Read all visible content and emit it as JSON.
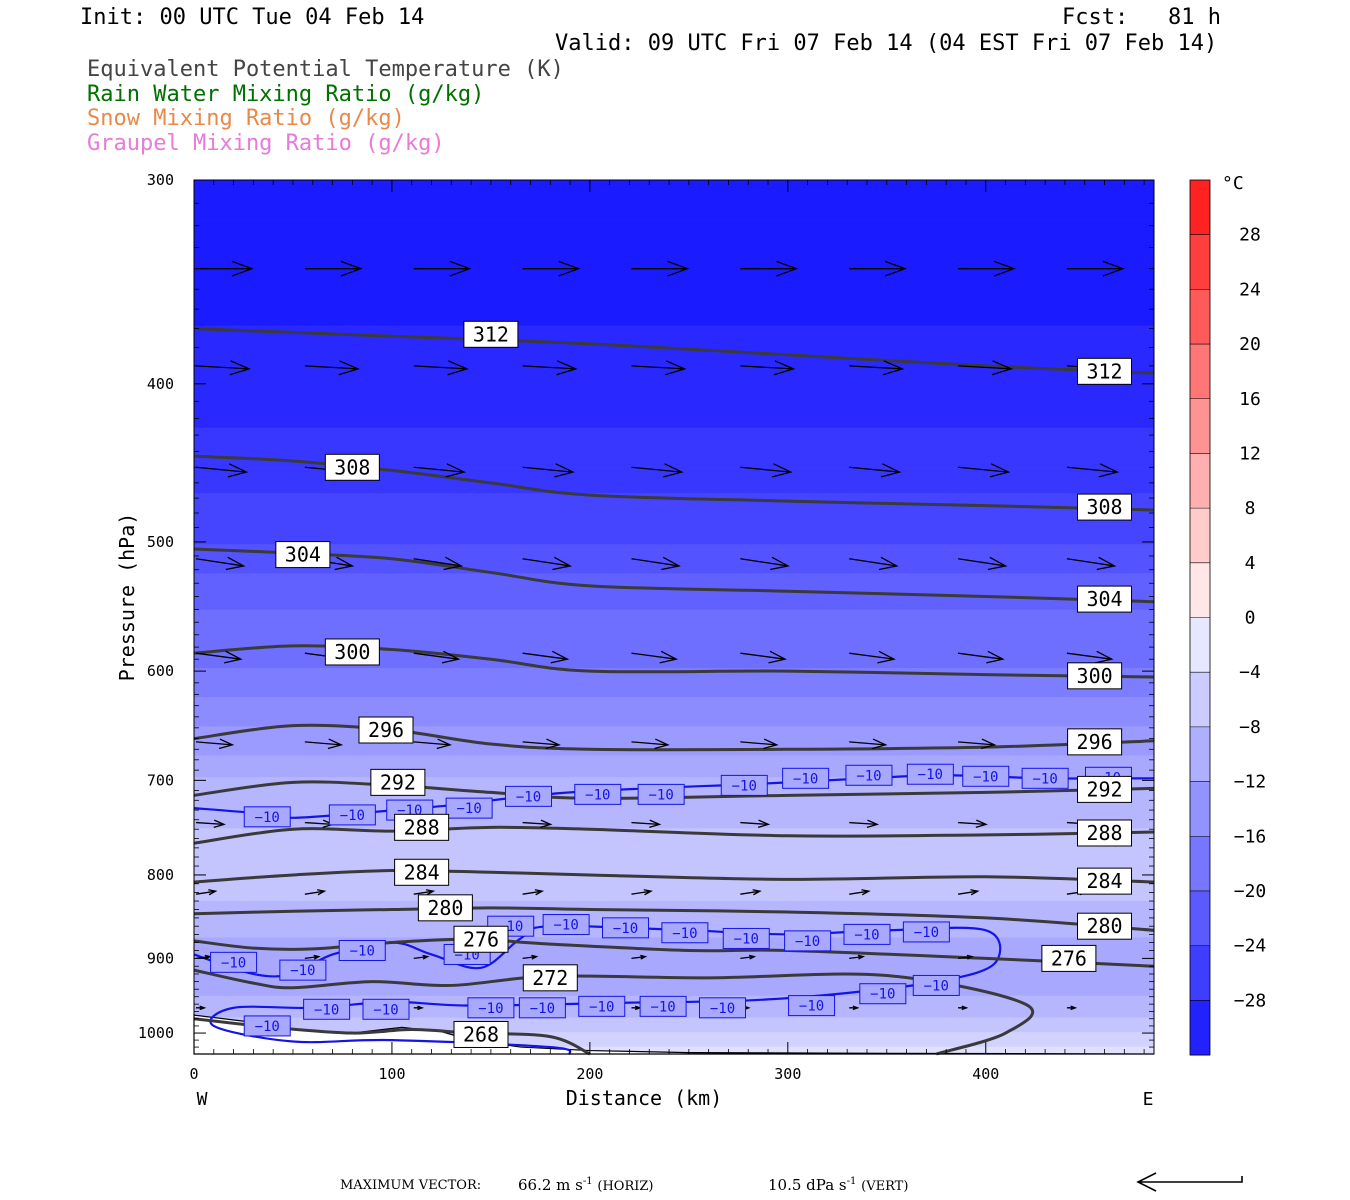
{
  "header": {
    "init": "Init: 00 UTC Tue 04 Feb 14",
    "fcst": "Fcst:   81 h",
    "valid": "Valid: 09 UTC Fri 07 Feb 14 (04 EST Fri 07 Feb 14)"
  },
  "legend": [
    {
      "label": "Equivalent Potential Temperature (K)",
      "color": "#444444"
    },
    {
      "label": "Rain Water Mixing Ratio (g/kg)",
      "color": "#007000"
    },
    {
      "label": "Snow Mixing Ratio (g/kg)",
      "color": "#e8894a"
    },
    {
      "label": "Graupel Mixing Ratio (g/kg)",
      "color": "#e87ad8"
    }
  ],
  "footer": {
    "max_vector_label": "MAXIMUM VECTOR:",
    "horiz_value": "66.2 m s",
    "horiz_exp": "-1",
    "horiz_unit": "(HORIZ)",
    "vert_value": "10.5 dPa s",
    "vert_exp": "-1",
    "vert_unit": "(VERT)"
  },
  "chart_data": {
    "type": "cross-section",
    "xlabel": "Distance (km)",
    "ylabel": "Pressure (hPa)",
    "xlim": [
      0,
      485
    ],
    "ylim": [
      1030,
      300
    ],
    "y_scale": "log",
    "x_ticks": [
      0,
      100,
      200,
      300,
      400
    ],
    "y_ticks": [
      300,
      400,
      500,
      600,
      700,
      800,
      900,
      1000
    ],
    "x_end_labels": {
      "left": "W",
      "right": "E"
    },
    "colorbar": {
      "unit": "°C",
      "tick_labels": [
        28,
        24,
        20,
        16,
        12,
        8,
        4,
        0,
        -4,
        -8,
        -12,
        -16,
        -20,
        -24,
        -28
      ],
      "min": -32,
      "max": 32,
      "step": 4
    },
    "theta_e_contours": [
      {
        "value": 312,
        "points": [
          [
            0,
            370
          ],
          [
            50,
            372
          ],
          [
            100,
            374
          ],
          [
            200,
            378
          ],
          [
            300,
            384
          ],
          [
            400,
            390
          ],
          [
            485,
            394
          ]
        ],
        "labels": [
          [
            150,
            373
          ],
          [
            460,
            393
          ]
        ]
      },
      {
        "value": 308,
        "points": [
          [
            0,
            443
          ],
          [
            50,
            446
          ],
          [
            100,
            452
          ],
          [
            150,
            460
          ],
          [
            200,
            468
          ],
          [
            300,
            472
          ],
          [
            400,
            475
          ],
          [
            485,
            478
          ]
        ],
        "labels": [
          [
            80,
            450
          ],
          [
            460,
            476
          ]
        ]
      },
      {
        "value": 304,
        "points": [
          [
            0,
            505
          ],
          [
            50,
            508
          ],
          [
            100,
            512
          ],
          [
            150,
            522
          ],
          [
            200,
            532
          ],
          [
            300,
            536
          ],
          [
            400,
            540
          ],
          [
            485,
            544
          ]
        ],
        "labels": [
          [
            55,
            509
          ],
          [
            460,
            542
          ]
        ]
      },
      {
        "value": 300,
        "points": [
          [
            0,
            585
          ],
          [
            50,
            579
          ],
          [
            100,
            582
          ],
          [
            150,
            590
          ],
          [
            200,
            600
          ],
          [
            300,
            600
          ],
          [
            400,
            603
          ],
          [
            485,
            605
          ]
        ],
        "labels": [
          [
            80,
            584
          ],
          [
            455,
            604
          ]
        ]
      },
      {
        "value": 296,
        "points": [
          [
            0,
            660
          ],
          [
            50,
            648
          ],
          [
            100,
            652
          ],
          [
            150,
            665
          ],
          [
            200,
            670
          ],
          [
            300,
            670
          ],
          [
            400,
            668
          ],
          [
            485,
            662
          ]
        ],
        "labels": [
          [
            97,
            652
          ],
          [
            455,
            663
          ]
        ]
      },
      {
        "value": 292,
        "points": [
          [
            0,
            715
          ],
          [
            50,
            702
          ],
          [
            100,
            705
          ],
          [
            150,
            712
          ],
          [
            200,
            718
          ],
          [
            300,
            715
          ],
          [
            400,
            712
          ],
          [
            485,
            708
          ]
        ],
        "labels": [
          [
            103,
            702
          ],
          [
            460,
            709
          ]
        ]
      },
      {
        "value": 288,
        "points": [
          [
            0,
            765
          ],
          [
            50,
            750
          ],
          [
            100,
            752
          ],
          [
            150,
            748
          ],
          [
            200,
            750
          ],
          [
            300,
            757
          ],
          [
            400,
            756
          ],
          [
            485,
            753
          ]
        ],
        "labels": [
          [
            115,
            748
          ],
          [
            460,
            754
          ]
        ]
      },
      {
        "value": 284,
        "points": [
          [
            0,
            808
          ],
          [
            50,
            800
          ],
          [
            100,
            795
          ],
          [
            150,
            797
          ],
          [
            200,
            800
          ],
          [
            300,
            805
          ],
          [
            400,
            802
          ],
          [
            485,
            808
          ]
        ],
        "labels": [
          [
            115,
            797
          ],
          [
            460,
            807
          ]
        ]
      },
      {
        "value": 280,
        "points": [
          [
            0,
            845
          ],
          [
            50,
            842
          ],
          [
            100,
            840
          ],
          [
            150,
            838
          ],
          [
            200,
            840
          ],
          [
            300,
            843
          ],
          [
            400,
            850
          ],
          [
            485,
            865
          ]
        ],
        "labels": [
          [
            127,
            838
          ],
          [
            460,
            860
          ]
        ]
      },
      {
        "value": 276,
        "points": [
          [
            0,
            878
          ],
          [
            30,
            887
          ],
          [
            60,
            888
          ],
          [
            100,
            880
          ],
          [
            140,
            876
          ],
          [
            180,
            882
          ],
          [
            250,
            890
          ],
          [
            300,
            890
          ],
          [
            400,
            900
          ],
          [
            485,
            910
          ]
        ],
        "labels": [
          [
            145,
            876
          ],
          [
            442,
            900
          ]
        ]
      },
      {
        "value": 272,
        "points": [
          [
            0,
            915
          ],
          [
            30,
            932
          ],
          [
            50,
            938
          ],
          [
            90,
            930
          ],
          [
            130,
            935
          ],
          [
            180,
            923
          ],
          [
            260,
            925
          ],
          [
            350,
            922
          ],
          [
            420,
            960
          ],
          [
            410,
            1000
          ],
          [
            375,
            1030
          ]
        ],
        "labels": [
          [
            180,
            925
          ]
        ]
      },
      {
        "value": 268,
        "points": [
          [
            0,
            980
          ],
          [
            40,
            992
          ],
          [
            80,
            1000
          ],
          [
            110,
            995
          ],
          [
            140,
            1000
          ],
          [
            180,
            1005
          ],
          [
            200,
            1030
          ]
        ],
        "labels": [
          [
            145,
            1002
          ]
        ]
      }
    ],
    "temperature_contours": [
      {
        "value": -10,
        "color": "#1414e6",
        "points": [
          [
            0,
            728
          ],
          [
            30,
            733
          ],
          [
            50,
            738
          ],
          [
            90,
            732
          ],
          [
            130,
            725
          ],
          [
            190,
            712
          ],
          [
            290,
            703
          ],
          [
            340,
            698
          ],
          [
            380,
            695
          ],
          [
            430,
            698
          ],
          [
            485,
            698
          ]
        ],
        "labels": [
          [
            37,
            737
          ],
          [
            80,
            735
          ],
          [
            109,
            730
          ],
          [
            139,
            728
          ],
          [
            169,
            716
          ],
          [
            204,
            714
          ],
          [
            236,
            714
          ],
          [
            278,
            705
          ],
          [
            309,
            698
          ],
          [
            341,
            695
          ],
          [
            372,
            694
          ],
          [
            400,
            696
          ],
          [
            430,
            698
          ],
          [
            462,
            697
          ]
        ]
      },
      {
        "value": -10,
        "color": "#1414e6",
        "points": [
          [
            0,
            895
          ],
          [
            30,
            920
          ],
          [
            50,
            920
          ],
          [
            70,
            895
          ],
          [
            100,
            880
          ],
          [
            120,
            895
          ],
          [
            145,
            912
          ],
          [
            165,
            875
          ],
          [
            180,
            860
          ],
          [
            250,
            865
          ],
          [
            300,
            870
          ],
          [
            350,
            865
          ],
          [
            400,
            865
          ],
          [
            405,
            905
          ],
          [
            380,
            928
          ],
          [
            330,
            945
          ],
          [
            280,
            955
          ],
          [
            220,
            958
          ],
          [
            140,
            962
          ],
          [
            100,
            957
          ],
          [
            60,
            965
          ],
          [
            20,
            965
          ],
          [
            10,
            990
          ],
          [
            50,
            1012
          ],
          [
            100,
            1010
          ],
          [
            180,
            1020
          ],
          [
            190,
            1030
          ]
        ],
        "labels": [
          [
            20,
            905
          ],
          [
            55,
            915
          ],
          [
            85,
            890
          ],
          [
            138,
            895
          ],
          [
            160,
            860
          ],
          [
            188,
            858
          ],
          [
            218,
            862
          ],
          [
            248,
            868
          ],
          [
            279,
            875
          ],
          [
            310,
            878
          ],
          [
            340,
            870
          ],
          [
            370,
            867
          ],
          [
            150,
            965
          ],
          [
            176,
            965
          ],
          [
            206,
            963
          ],
          [
            237,
            963
          ],
          [
            267,
            965
          ],
          [
            312,
            962
          ],
          [
            348,
            946
          ],
          [
            375,
            935
          ],
          [
            67,
            967
          ],
          [
            97,
            967
          ],
          [
            37,
            990
          ]
        ]
      }
    ],
    "wind_vector_rows": [
      {
        "p": 340,
        "xs": [
          0,
          55,
          110,
          165,
          220,
          275,
          330,
          385,
          440
        ],
        "u": 1.0,
        "w": 0.0
      },
      {
        "p": 390,
        "xs": [
          0,
          55,
          110,
          165,
          220,
          275,
          330,
          385,
          440
        ],
        "u": 0.95,
        "w": -0.05
      },
      {
        "p": 450,
        "xs": [
          0,
          55,
          110,
          165,
          220,
          275,
          330,
          385,
          440
        ],
        "u": 0.9,
        "w": -0.08
      },
      {
        "p": 512,
        "xs": [
          0,
          55,
          110,
          165,
          220,
          275,
          330,
          385,
          440
        ],
        "u": 0.85,
        "w": -0.12
      },
      {
        "p": 585,
        "xs": [
          0,
          55,
          110,
          165,
          220,
          275,
          330,
          385,
          440
        ],
        "u": 0.8,
        "w": -0.1
      },
      {
        "p": 663,
        "xs": [
          0,
          55,
          110,
          165,
          220,
          275,
          330,
          385,
          440
        ],
        "u": 0.65,
        "w": -0.05
      },
      {
        "p": 743,
        "xs": [
          0,
          55,
          110,
          165,
          220,
          275,
          330,
          385,
          440
        ],
        "u": 0.5,
        "w": -0.03
      },
      {
        "p": 822,
        "xs": [
          0,
          55,
          110,
          165,
          220,
          275,
          330,
          385,
          440
        ],
        "u": 0.35,
        "w": 0.05
      },
      {
        "p": 900,
        "xs": [
          0,
          55,
          110,
          165,
          220,
          275,
          330,
          385,
          440
        ],
        "u": 0.25,
        "w": 0.03
      },
      {
        "p": 965,
        "xs": [
          0,
          55,
          110,
          165,
          220,
          275,
          330,
          385,
          440
        ],
        "u": 0.15,
        "w": 0.0
      }
    ],
    "temperature_field_anchors": [
      {
        "p": 300,
        "t": -32
      },
      {
        "p": 400,
        "t": -29
      },
      {
        "p": 450,
        "t": -27
      },
      {
        "p": 500,
        "t": -24
      },
      {
        "p": 550,
        "t": -20
      },
      {
        "p": 600,
        "t": -18
      },
      {
        "p": 650,
        "t": -14
      },
      {
        "p": 700,
        "t": -10
      },
      {
        "p": 750,
        "t": -8
      },
      {
        "p": 800,
        "t": -6
      },
      {
        "p": 850,
        "t": -9
      },
      {
        "p": 900,
        "t": -11
      },
      {
        "p": 950,
        "t": -10
      },
      {
        "p": 1000,
        "t": -6
      },
      {
        "p": 1030,
        "t": -3
      }
    ],
    "terrain": [
      [
        0,
        975
      ],
      [
        30,
        985
      ],
      [
        50,
        995
      ],
      [
        80,
        1000
      ],
      [
        105,
        992
      ],
      [
        125,
        998
      ],
      [
        140,
        1010
      ],
      [
        165,
        1020
      ],
      [
        200,
        1025
      ],
      [
        250,
        1028
      ],
      [
        350,
        1029
      ],
      [
        485,
        1030
      ]
    ]
  }
}
